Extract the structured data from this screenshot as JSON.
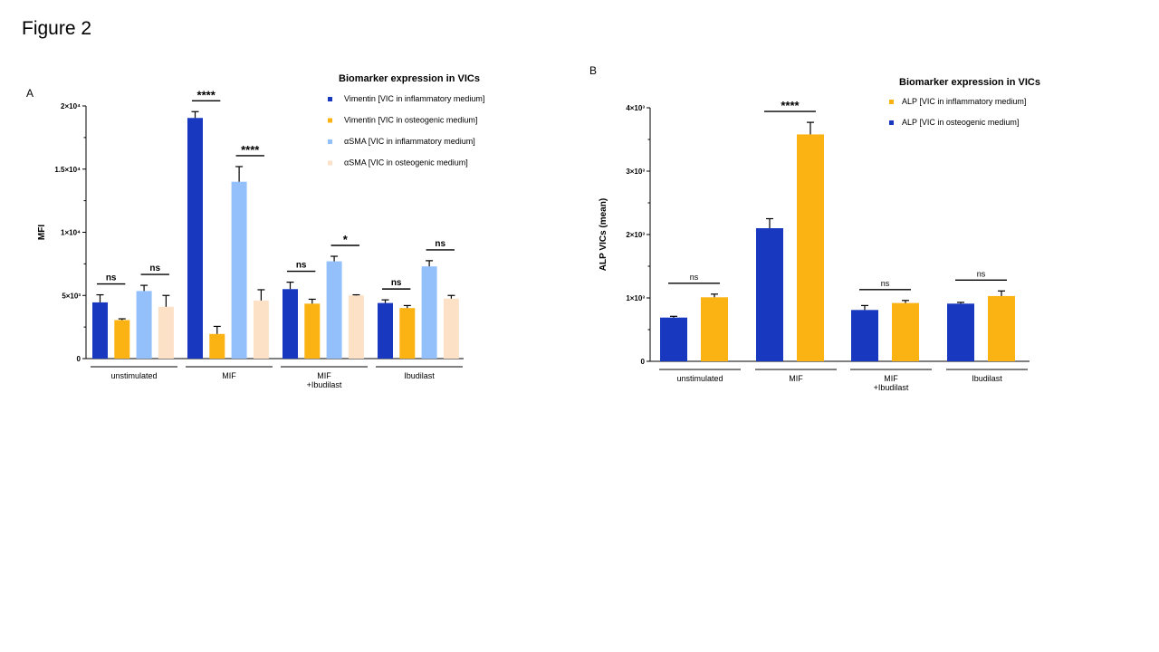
{
  "figure": {
    "title": "Figure 2"
  },
  "colors": {
    "vimentin_infl": "#1838c0",
    "vimentin_osteo": "#fbb314",
    "asma_infl": "#93c0fb",
    "asma_osteo": "#fde1c6",
    "axis": "#000000"
  },
  "chart_data": [
    {
      "panel": "A",
      "type": "bar",
      "title": "Biomarker expression in VICs",
      "ylabel": "MFI",
      "xlabel": "",
      "ylim": [
        0,
        20000
      ],
      "ticks": [
        {
          "value": 0,
          "label": "0"
        },
        {
          "value": 5000,
          "label": "5×10³"
        },
        {
          "value": 10000,
          "label": "1×10⁴"
        },
        {
          "value": 15000,
          "label": "1.5×10⁴"
        },
        {
          "value": 20000,
          "label": "2×10⁴"
        }
      ],
      "categories": [
        "unstimulated",
        "MIF",
        "MIF\n+Ibudilast",
        "Ibudilast"
      ],
      "series": [
        {
          "name": "Vimentin [VIC in inflammatory medium]",
          "color": "#1838c0",
          "values": [
            4450,
            19050,
            5500,
            4400
          ],
          "errors": [
            600,
            500,
            550,
            250
          ]
        },
        {
          "name": "Vimentin [VIC in osteogenic medium]",
          "color": "#fbb314",
          "values": [
            3050,
            1950,
            4350,
            4000
          ],
          "errors": [
            100,
            600,
            350,
            200
          ]
        },
        {
          "name": "αSMA [VIC in inflammatory medium]",
          "color": "#93c0fb",
          "values": [
            5350,
            14000,
            7700,
            7300
          ],
          "errors": [
            450,
            1200,
            400,
            450
          ]
        },
        {
          "name": "αSMA [VIC in osteogenic medium]",
          "color": "#fde1c6",
          "values": [
            4100,
            4600,
            5000,
            4750
          ],
          "errors": [
            900,
            850,
            50,
            250
          ]
        }
      ],
      "annotations": [
        {
          "category": 0,
          "pair": [
            0,
            1
          ],
          "label": "ns"
        },
        {
          "category": 0,
          "pair": [
            2,
            3
          ],
          "label": "ns"
        },
        {
          "category": 1,
          "pair": [
            0,
            1
          ],
          "label": "****"
        },
        {
          "category": 1,
          "pair": [
            2,
            3
          ],
          "label": "****"
        },
        {
          "category": 2,
          "pair": [
            0,
            1
          ],
          "label": "ns"
        },
        {
          "category": 2,
          "pair": [
            2,
            3
          ],
          "label": "*"
        },
        {
          "category": 3,
          "pair": [
            0,
            1
          ],
          "label": "ns"
        },
        {
          "category": 3,
          "pair": [
            2,
            3
          ],
          "label": "ns"
        }
      ],
      "legend": "top-right",
      "grid": false
    },
    {
      "panel": "B",
      "type": "bar",
      "title": "Biomarker expression in VICs",
      "ylabel": "ALP VICs (mean)",
      "xlabel": "",
      "ylim": [
        0,
        4000
      ],
      "ticks": [
        {
          "value": 0,
          "label": "0"
        },
        {
          "value": 1000,
          "label": "1×10³"
        },
        {
          "value": 2000,
          "label": "2×10³"
        },
        {
          "value": 3000,
          "label": "3×10³"
        },
        {
          "value": 4000,
          "label": "4×10³"
        }
      ],
      "categories": [
        "unstimulated",
        "MIF",
        "MIF\n+Ibudilast",
        "Ibudilast"
      ],
      "series": [
        {
          "name": "ALP [VIC in osteogenic medium]",
          "color": "#1838c0",
          "values": [
            690,
            2100,
            810,
            910
          ],
          "errors": [
            20,
            150,
            70,
            20
          ]
        },
        {
          "name": "ALP [VIC in inflammatory medium]",
          "color": "#fbb314",
          "values": [
            1010,
            3580,
            920,
            1030
          ],
          "errors": [
            50,
            190,
            40,
            80
          ]
        }
      ],
      "legend_order": [
        1,
        0
      ],
      "annotations": [
        {
          "category": 0,
          "pair": [
            0,
            1
          ],
          "label": "ns"
        },
        {
          "category": 1,
          "pair": [
            0,
            1
          ],
          "label": "****"
        },
        {
          "category": 2,
          "pair": [
            0,
            1
          ],
          "label": "ns"
        },
        {
          "category": 3,
          "pair": [
            0,
            1
          ],
          "label": "ns"
        }
      ],
      "legend": "top-right",
      "grid": false
    }
  ]
}
